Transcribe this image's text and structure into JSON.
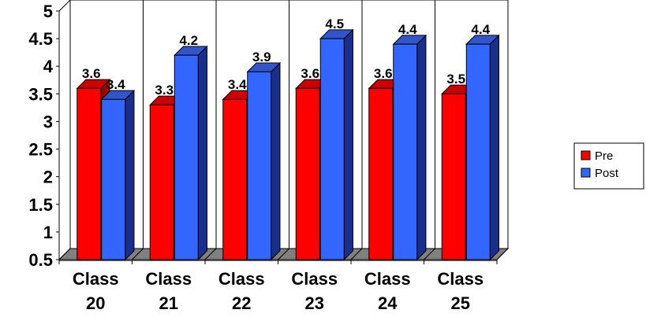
{
  "chart_data": {
    "type": "bar",
    "categories": [
      [
        "Class",
        "20"
      ],
      [
        "Class",
        "21"
      ],
      [
        "Class",
        "22"
      ],
      [
        "Class",
        "23"
      ],
      [
        "Class",
        "24"
      ],
      [
        "Class",
        "25"
      ]
    ],
    "series": [
      {
        "name": "Pre",
        "values": [
          3.6,
          3.3,
          3.4,
          3.6,
          3.6,
          3.5
        ],
        "labels": [
          "3.6",
          "3.3",
          "3.4",
          "3.6",
          "3.6",
          "3.5"
        ],
        "color": "#ff0000",
        "top_color": "#cc0000",
        "side_color": "#990000"
      },
      {
        "name": "Post",
        "values": [
          3.4,
          4.2,
          3.9,
          4.5,
          4.4,
          4.4
        ],
        "labels": [
          "3.4",
          "4.2",
          "3.9",
          "4.5",
          "4.4",
          "4.4"
        ],
        "color": "#3366ff",
        "top_color": "#3355cc",
        "side_color": "#1a2f8c"
      }
    ],
    "yticks": [
      "0.5",
      "1",
      "1.5",
      "2",
      "2.5",
      "3",
      "3.5",
      "4",
      "4.5",
      "5"
    ],
    "ylim": [
      0.5,
      5
    ],
    "grid": true,
    "three_d": true,
    "legend_position": "right",
    "floor_color": "#808080"
  }
}
